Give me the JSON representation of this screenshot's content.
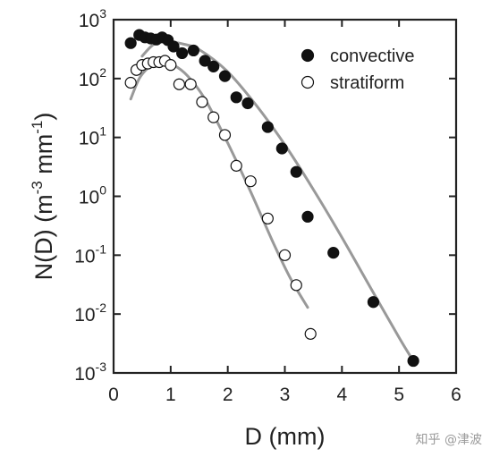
{
  "chart_data": {
    "type": "scatter",
    "title": "",
    "xlabel": "D (mm)",
    "ylabel": {
      "base": "N(D) (m",
      "exp1": "-3",
      "mid": " mm",
      "exp2": "-1",
      "end": ")"
    },
    "xlim": [
      0,
      6
    ],
    "ylim": [
      0.001,
      1000
    ],
    "yscale": "log",
    "x_ticks": [
      "0",
      "1",
      "2",
      "3",
      "4",
      "5",
      "6"
    ],
    "y_ticks": [
      {
        "base": "10",
        "exp": "3"
      },
      {
        "base": "10",
        "exp": "2"
      },
      {
        "base": "10",
        "exp": "1"
      },
      {
        "base": "10",
        "exp": "0"
      },
      {
        "base": "10",
        "exp": "-1"
      },
      {
        "base": "10",
        "exp": "-2"
      },
      {
        "base": "10",
        "exp": "-3"
      }
    ],
    "grid": false,
    "legend_position": "top-right",
    "series": [
      {
        "name": "convective",
        "marker": "filled-circle",
        "color": "#111111",
        "x": [
          0.3,
          0.45,
          0.55,
          0.65,
          0.75,
          0.85,
          0.95,
          1.05,
          1.2,
          1.4,
          1.6,
          1.75,
          1.95,
          2.15,
          2.35,
          2.7,
          2.95,
          3.2,
          3.4,
          3.85,
          4.55,
          5.25
        ],
        "y": [
          400,
          550,
          500,
          480,
          460,
          500,
          450,
          350,
          270,
          300,
          200,
          160,
          110,
          48,
          38,
          15,
          6.5,
          2.6,
          0.45,
          0.11,
          0.016,
          0.0016
        ]
      },
      {
        "name": "stratiform",
        "marker": "open-circle",
        "color": "#111111",
        "x": [
          0.3,
          0.4,
          0.5,
          0.6,
          0.7,
          0.8,
          0.9,
          1.0,
          1.15,
          1.35,
          1.55,
          1.75,
          1.95,
          2.15,
          2.4,
          2.7,
          3.0,
          3.2,
          3.45
        ],
        "y": [
          85,
          140,
          170,
          180,
          190,
          190,
          200,
          170,
          80,
          80,
          40,
          22,
          11,
          3.3,
          1.8,
          0.42,
          0.1,
          0.031,
          0.0046
        ]
      }
    ],
    "fit_curves": [
      {
        "series": "convective",
        "color": "#999999",
        "x": [
          0.5,
          0.7,
          0.9,
          1.0,
          1.2,
          1.5,
          2.0,
          2.5,
          3.0,
          3.5,
          4.0,
          4.5,
          5.0,
          5.25
        ],
        "y": [
          240,
          380,
          430,
          420,
          390,
          310,
          130,
          35,
          7.5,
          1.3,
          0.2,
          0.028,
          0.004,
          0.0016
        ]
      },
      {
        "series": "stratiform",
        "color": "#999999",
        "x": [
          0.3,
          0.45,
          0.6,
          0.75,
          0.9,
          1.05,
          1.3,
          1.6,
          2.0,
          2.4,
          2.8,
          3.1,
          3.4
        ],
        "y": [
          45,
          100,
          150,
          180,
          180,
          170,
          110,
          45,
          8,
          1.2,
          0.16,
          0.04,
          0.013
        ]
      }
    ]
  },
  "watermark": "知乎 @津波"
}
